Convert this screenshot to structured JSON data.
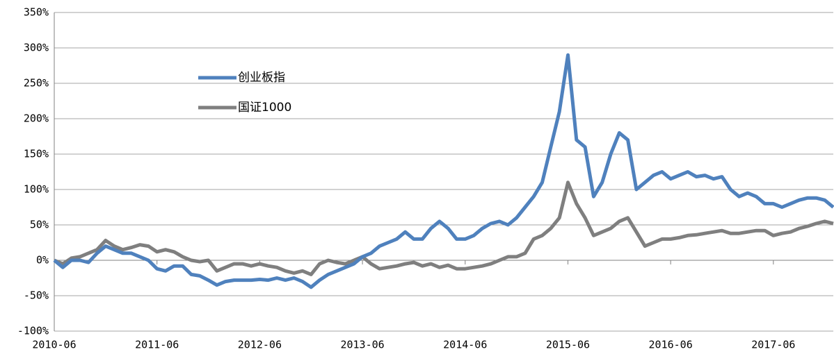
{
  "chart_data": {
    "type": "line",
    "categories": [
      "2010-06",
      null,
      null,
      null,
      null,
      null,
      null,
      null,
      null,
      null,
      null,
      null,
      "2011-06",
      null,
      null,
      null,
      null,
      null,
      null,
      null,
      null,
      null,
      null,
      null,
      "2012-06",
      null,
      null,
      null,
      null,
      null,
      null,
      null,
      null,
      null,
      null,
      null,
      "2013-06",
      null,
      null,
      null,
      null,
      null,
      null,
      null,
      null,
      null,
      null,
      null,
      "2014-06",
      null,
      null,
      null,
      null,
      null,
      null,
      null,
      null,
      null,
      null,
      null,
      "2015-06",
      null,
      null,
      null,
      null,
      null,
      null,
      null,
      null,
      null,
      null,
      null,
      "2016-06",
      null,
      null,
      null,
      null,
      null,
      null,
      null,
      null,
      null,
      null,
      null,
      "2017-06",
      null,
      null,
      null,
      null,
      null,
      null,
      null
    ],
    "series": [
      {
        "name": "创业板指",
        "color": "#4f81bd",
        "values": [
          0,
          -10,
          0,
          0,
          -3,
          10,
          20,
          15,
          10,
          10,
          5,
          0,
          -12,
          -15,
          -8,
          -8,
          -20,
          -22,
          -28,
          -35,
          -30,
          -28,
          -28,
          -28,
          -27,
          -28,
          -25,
          -28,
          -25,
          -30,
          -38,
          -28,
          -20,
          -15,
          -10,
          -5,
          5,
          10,
          20,
          25,
          30,
          40,
          30,
          30,
          45,
          55,
          45,
          30,
          30,
          35,
          45,
          52,
          55,
          50,
          60,
          75,
          90,
          110,
          160,
          210,
          290,
          170,
          160,
          90,
          110,
          150,
          180,
          170,
          100,
          110,
          120,
          125,
          115,
          120,
          125,
          118,
          120,
          115,
          118,
          100,
          90,
          95,
          90,
          80,
          80,
          75,
          80,
          85,
          88,
          88,
          85,
          75
        ]
      },
      {
        "name": "国证1000",
        "color": "#7f7f7f",
        "values": [
          0,
          -5,
          3,
          5,
          10,
          15,
          28,
          20,
          15,
          18,
          22,
          20,
          12,
          15,
          12,
          5,
          0,
          -2,
          0,
          -15,
          -10,
          -5,
          -5,
          -8,
          -5,
          -8,
          -10,
          -15,
          -18,
          -15,
          -20,
          -5,
          0,
          -3,
          -5,
          0,
          5,
          -5,
          -12,
          -10,
          -8,
          -5,
          -3,
          -8,
          -5,
          -10,
          -7,
          -12,
          -12,
          -10,
          -8,
          -5,
          0,
          5,
          5,
          10,
          30,
          35,
          45,
          60,
          110,
          80,
          60,
          35,
          40,
          45,
          55,
          60,
          40,
          20,
          25,
          30,
          30,
          32,
          35,
          36,
          38,
          40,
          42,
          38,
          38,
          40,
          42,
          42,
          35,
          38,
          40,
          45,
          48,
          52,
          55,
          52
        ]
      }
    ],
    "ylim": [
      -100,
      350
    ],
    "yticks": [
      {
        "value": -100,
        "label": "-100%"
      },
      {
        "value": -50,
        "label": "-50%"
      },
      {
        "value": 0,
        "label": "0%"
      },
      {
        "value": 50,
        "label": "50%"
      },
      {
        "value": 100,
        "label": "100%"
      },
      {
        "value": 150,
        "label": "150%"
      },
      {
        "value": 200,
        "label": "200%"
      },
      {
        "value": 250,
        "label": "250%"
      },
      {
        "value": 300,
        "label": "300%"
      },
      {
        "value": 350,
        "label": "350%"
      }
    ],
    "grid": true
  }
}
